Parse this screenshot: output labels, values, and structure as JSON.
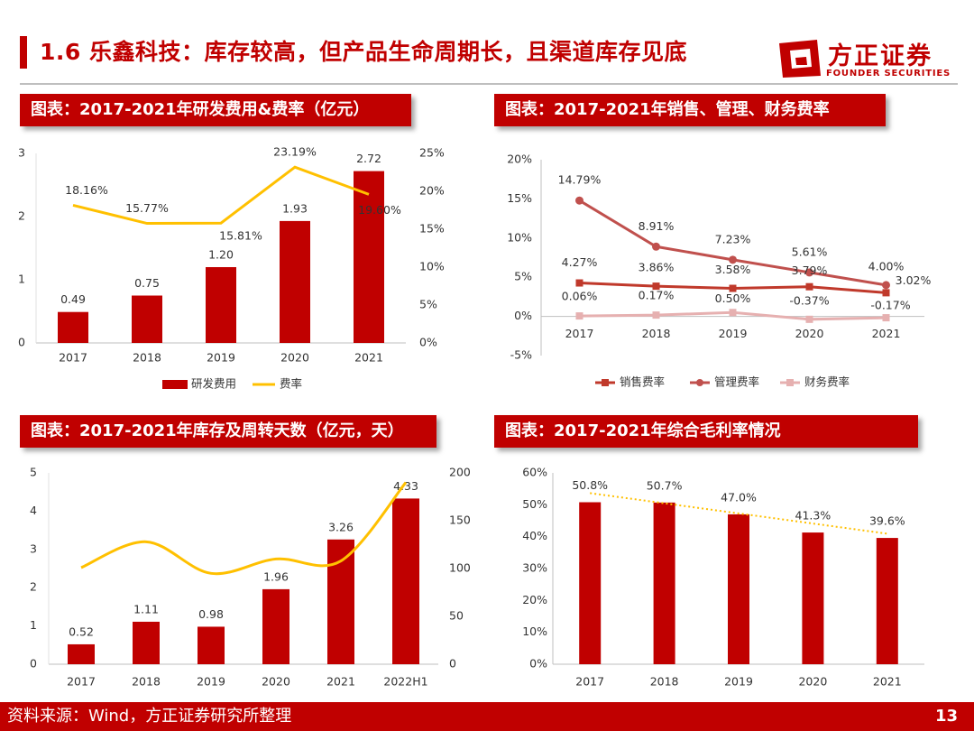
{
  "header": {
    "title": "1.6 乐鑫科技：库存较高，但产品生命周期长，且渠道库存见底",
    "logo_cn": "方正证券",
    "logo_en": "FOUNDER SECURITIES"
  },
  "panels": {
    "p1": "图表：2017-2021年研发费用&费率（亿元）",
    "p2": "图表：2017-2021年销售、管理、财务费率",
    "p3": "图表：2017-2021年库存及周转天数（亿元，天）",
    "p4": "图表：2017-2021年综合毛利率情况"
  },
  "footer": {
    "source": "资料来源：Wind，方正证券研究所整理",
    "page": "13"
  },
  "colors": {
    "red": "#c00000",
    "gold": "#ffc000",
    "grid": "#d9d9d9"
  },
  "chart_data": [
    {
      "type": "bar",
      "title": "2017-2021年研发费用&费率（亿元）",
      "categories": [
        "2017",
        "2018",
        "2019",
        "2020",
        "2021"
      ],
      "series": [
        {
          "name": "研发费用",
          "kind": "bar",
          "axis": "left",
          "values": [
            0.49,
            0.75,
            1.2,
            1.93,
            2.72
          ],
          "labels": [
            "0.49",
            "0.75",
            "1.20",
            "1.93",
            "2.72"
          ]
        },
        {
          "name": "费率",
          "kind": "line",
          "axis": "right",
          "values": [
            18.16,
            15.77,
            15.81,
            23.19,
            19.6
          ],
          "labels": [
            "18.16%",
            "15.77%",
            "15.81%",
            "23.19%",
            "19.60%"
          ]
        }
      ],
      "ylim": [
        0,
        3
      ],
      "yticks": [
        "0",
        "1",
        "2",
        "3"
      ],
      "y2lim": [
        0,
        25
      ],
      "y2ticks": [
        "0%",
        "5%",
        "10%",
        "15%",
        "20%",
        "25%"
      ],
      "legend": [
        "研发费用",
        "费率"
      ]
    },
    {
      "type": "line",
      "title": "2017-2021年销售、管理、财务费率",
      "categories": [
        "2017",
        "2018",
        "2019",
        "2020",
        "2021"
      ],
      "series": [
        {
          "name": "销售费率",
          "color": "#c0392b",
          "marker": "square",
          "values": [
            4.27,
            3.86,
            3.58,
            3.79,
            3.02
          ],
          "labels": [
            "4.27%",
            "3.86%",
            "3.58%",
            "3.79%",
            "3.02%"
          ]
        },
        {
          "name": "管理费率",
          "color": "#c0504d",
          "marker": "circle",
          "values": [
            14.79,
            8.91,
            7.23,
            5.61,
            4.0
          ],
          "labels": [
            "14.79%",
            "8.91%",
            "7.23%",
            "5.61%",
            "4.00%"
          ]
        },
        {
          "name": "财务费率",
          "color": "#e6b0b0",
          "marker": "square",
          "values": [
            0.06,
            0.17,
            0.5,
            -0.37,
            -0.17
          ],
          "labels": [
            "0.06%",
            "0.17%",
            "0.50%",
            "-0.37%",
            "-0.17%"
          ]
        }
      ],
      "ylim": [
        -5,
        20
      ],
      "yticks": [
        "-5%",
        "0%",
        "5%",
        "10%",
        "15%",
        "20%"
      ],
      "legend": [
        "销售费率",
        "管理费率",
        "财务费率"
      ]
    },
    {
      "type": "bar",
      "title": "2017-2021年库存及周转天数（亿元，天）",
      "categories": [
        "2017",
        "2018",
        "2019",
        "2020",
        "2021",
        "2022H1"
      ],
      "series": [
        {
          "name": "库存",
          "kind": "bar",
          "axis": "left",
          "values": [
            0.52,
            1.11,
            0.98,
            1.96,
            3.26,
            4.33
          ],
          "labels": [
            "0.52",
            "1.11",
            "0.98",
            "1.96",
            "3.26",
            "4.33"
          ]
        },
        {
          "name": "周转天数",
          "kind": "line",
          "axis": "right",
          "values": [
            101,
            128,
            95,
            110,
            108,
            190
          ]
        }
      ],
      "ylim": [
        0,
        5
      ],
      "yticks": [
        "0",
        "1",
        "2",
        "3",
        "4",
        "5"
      ],
      "y2lim": [
        0,
        200
      ],
      "y2ticks": [
        "0",
        "50",
        "100",
        "150",
        "200"
      ]
    },
    {
      "type": "bar",
      "title": "2017-2021年综合毛利率情况",
      "categories": [
        "2017",
        "2018",
        "2019",
        "2020",
        "2021"
      ],
      "series": [
        {
          "name": "综合毛利率",
          "kind": "bar",
          "values": [
            50.8,
            50.7,
            47.0,
            41.3,
            39.6
          ],
          "labels": [
            "50.8%",
            "50.7%",
            "47.0%",
            "41.3%",
            "39.6%"
          ]
        }
      ],
      "trendline": true,
      "ylim": [
        0,
        60
      ],
      "yticks": [
        "0%",
        "10%",
        "20%",
        "30%",
        "40%",
        "50%",
        "60%"
      ]
    }
  ]
}
